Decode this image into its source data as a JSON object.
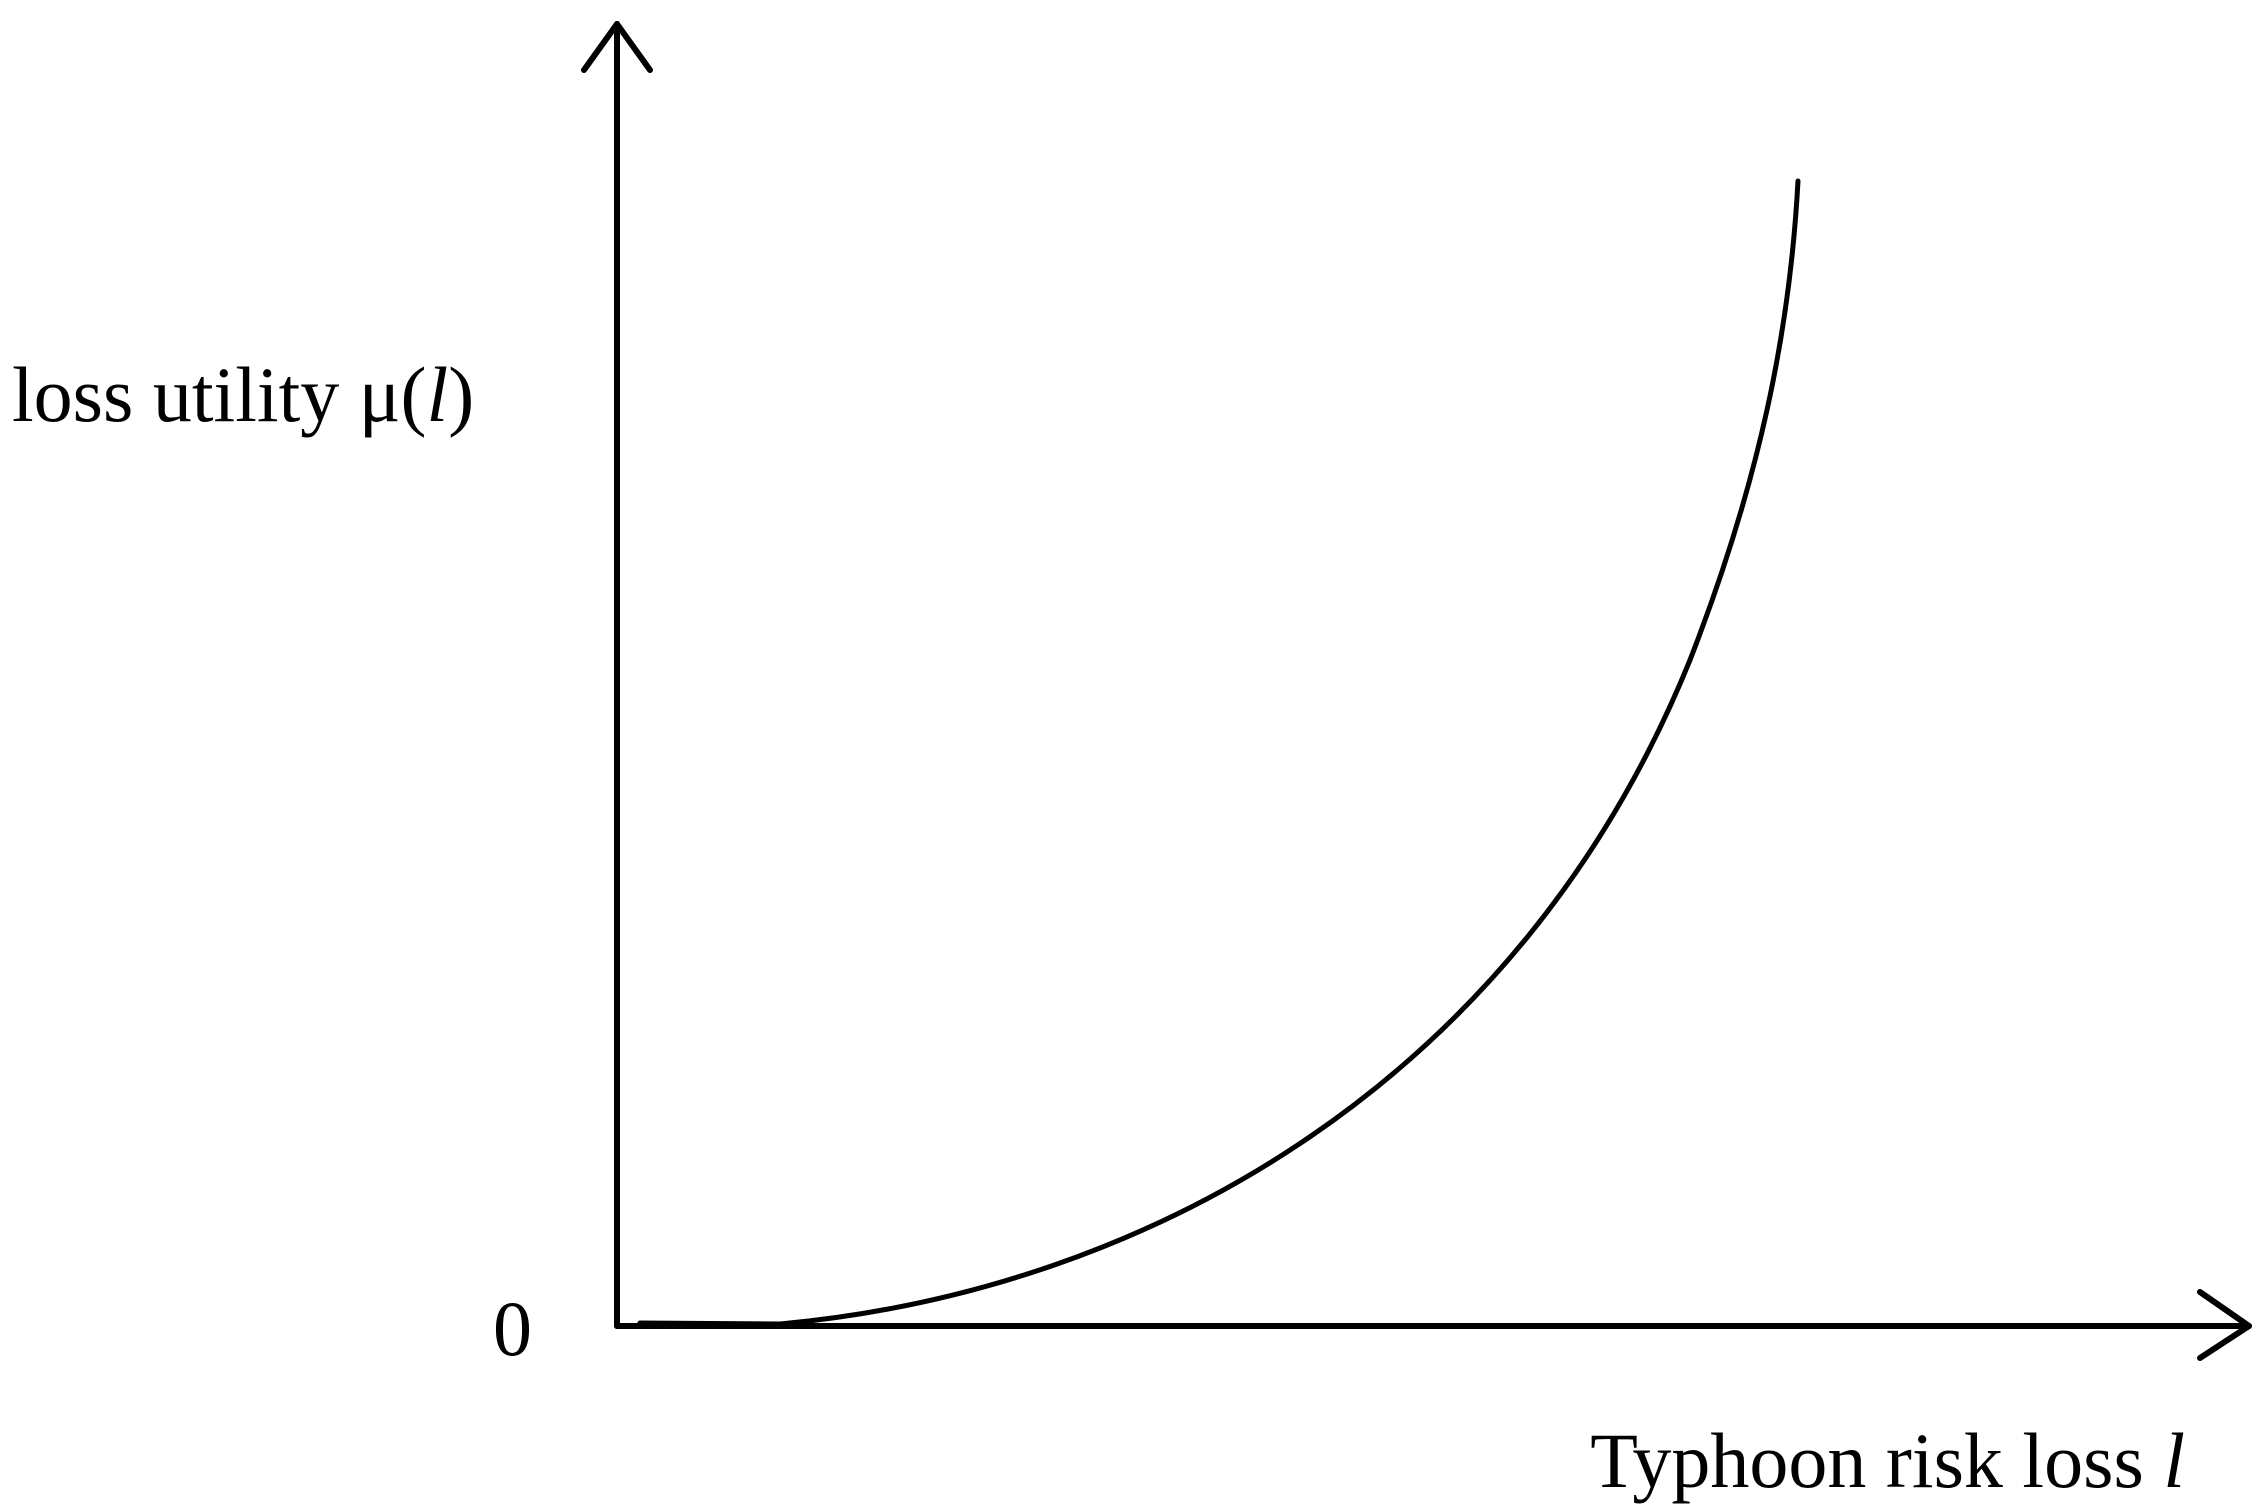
{
  "y_axis": {
    "label_parts": [
      "loss utility μ(",
      "l",
      ")"
    ]
  },
  "origin": {
    "label": "0"
  },
  "x_axis": {
    "label_parts": [
      "Typhoon risk loss ",
      "l"
    ]
  }
}
